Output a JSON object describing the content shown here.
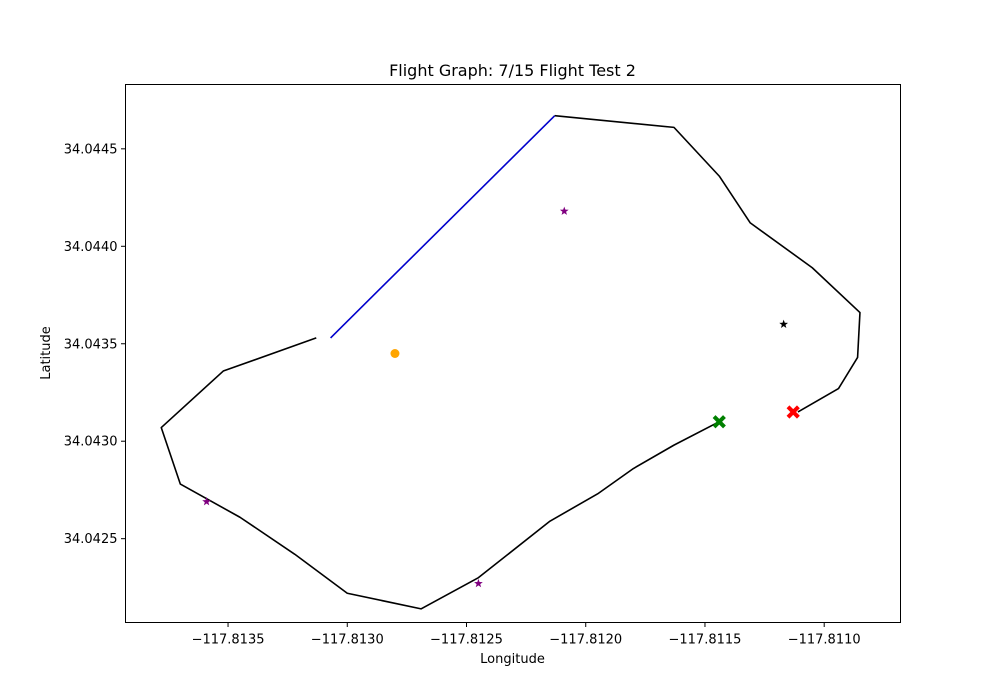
{
  "chart_data": {
    "type": "line",
    "title": "Flight Graph: 7/15 Flight Test 2",
    "xlabel": "Longitude",
    "ylabel": "Latitude",
    "xlim": [
      -117.81393,
      -117.81068
    ],
    "ylim": [
      34.04207,
      34.04483
    ],
    "xticks": [
      {
        "value": -117.8135,
        "label": "−117.8135"
      },
      {
        "value": -117.813,
        "label": "−117.8130"
      },
      {
        "value": -117.8125,
        "label": "−117.8125"
      },
      {
        "value": -117.812,
        "label": "−117.8120"
      },
      {
        "value": -117.8115,
        "label": "−117.8115"
      },
      {
        "value": -117.811,
        "label": "−117.8110"
      }
    ],
    "yticks": [
      {
        "value": 34.0425,
        "label": "34.0425"
      },
      {
        "value": 34.043,
        "label": "34.0430"
      },
      {
        "value": 34.0435,
        "label": "34.0435"
      },
      {
        "value": 34.044,
        "label": "34.0440"
      },
      {
        "value": 34.0445,
        "label": "34.0445"
      }
    ],
    "grid": false,
    "series": [
      {
        "color": "#000000",
        "points": [
          [
            -117.81313,
            34.04353
          ],
          [
            -117.81352,
            34.04336
          ],
          [
            -117.81378,
            34.04307
          ],
          [
            -117.8137,
            34.04278
          ],
          [
            -117.81345,
            34.04261
          ],
          [
            -117.81322,
            34.04242
          ],
          [
            -117.813,
            34.04222
          ],
          [
            -117.81269,
            34.04214
          ],
          [
            -117.81245,
            34.0423
          ],
          [
            -117.81215,
            34.04259
          ],
          [
            -117.81195,
            34.04273
          ],
          [
            -117.8118,
            34.04286
          ],
          [
            -117.81163,
            34.04298
          ],
          [
            -117.81144,
            34.0431
          ]
        ]
      },
      {
        "color": "#0000cc",
        "points": [
          [
            -117.81307,
            34.04353
          ],
          [
            -117.81213,
            34.04467
          ]
        ]
      },
      {
        "color": "#000000",
        "points": [
          [
            -117.81213,
            34.04467
          ],
          [
            -117.81163,
            34.04461
          ],
          [
            -117.81144,
            34.04436
          ],
          [
            -117.81131,
            34.04412
          ],
          [
            -117.81105,
            34.04389
          ],
          [
            -117.81085,
            34.04366
          ],
          [
            -117.81086,
            34.04343
          ],
          [
            -117.81094,
            34.04327
          ],
          [
            -117.81111,
            34.04315
          ]
        ]
      }
    ],
    "markers": [
      {
        "kind": "circle",
        "color": "#ffa500",
        "x": -117.8128,
        "y": 34.04345
      },
      {
        "kind": "star",
        "color": "#800080",
        "x": -117.81209,
        "y": 34.04418
      },
      {
        "kind": "star",
        "color": "#800080",
        "x": -117.81359,
        "y": 34.04269
      },
      {
        "kind": "star",
        "color": "#800080",
        "x": -117.81245,
        "y": 34.04227
      },
      {
        "kind": "star",
        "color": "#000000",
        "x": -117.81117,
        "y": 34.0436
      },
      {
        "kind": "x",
        "color": "#008000",
        "x": -117.81144,
        "y": 34.0431
      },
      {
        "kind": "x",
        "color": "#ff0000",
        "x": -117.81113,
        "y": 34.04315
      }
    ]
  }
}
